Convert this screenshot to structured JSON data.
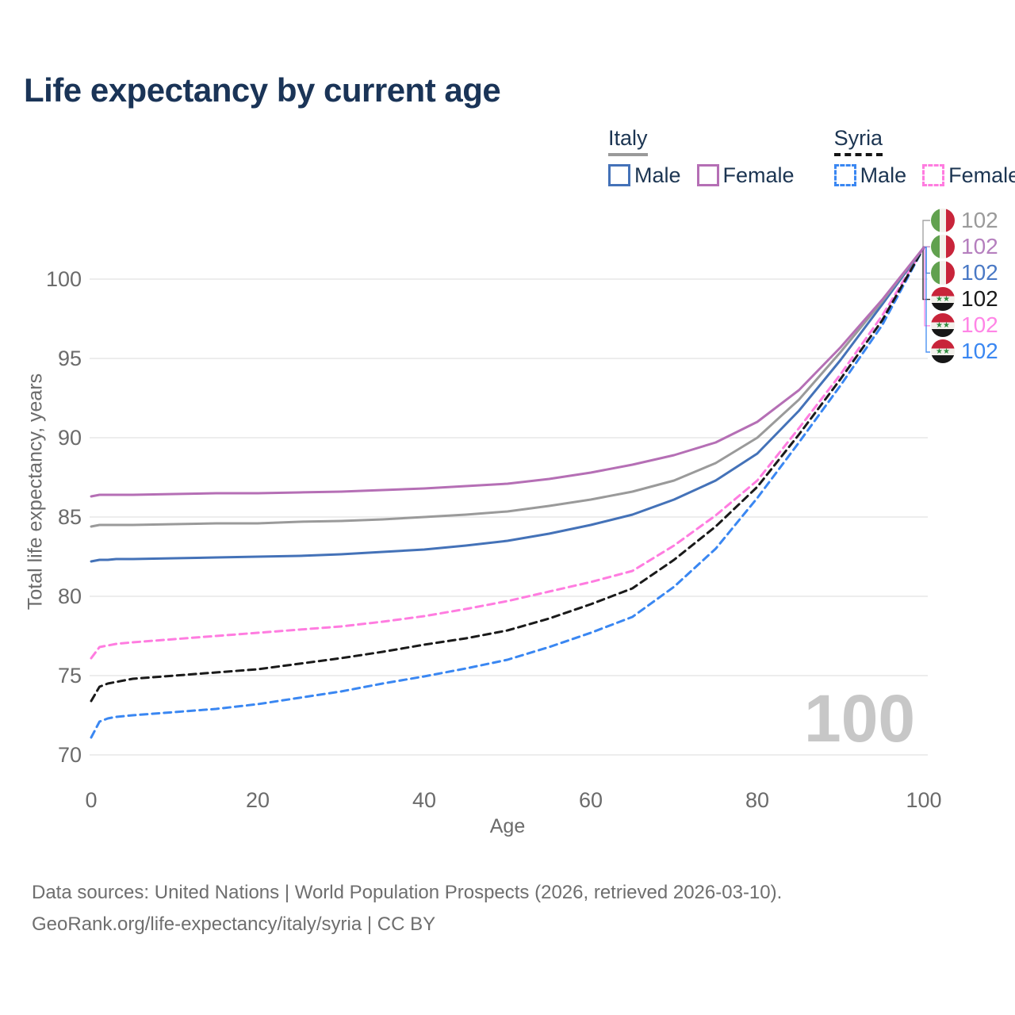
{
  "title": "Life expectancy by current age",
  "legend": {
    "groups": [
      {
        "country": "Italy",
        "underline_style": "solid",
        "underline_color": "#9a9a9a",
        "items": [
          {
            "label": "Male",
            "color": "#4472b8",
            "style": "solid"
          },
          {
            "label": "Female",
            "color": "#b56fb5",
            "style": "solid"
          }
        ]
      },
      {
        "country": "Syria",
        "underline_style": "dashed",
        "underline_color": "#141414",
        "items": [
          {
            "label": "Male",
            "color": "#3a87f2",
            "style": "dashed"
          },
          {
            "label": "Female",
            "color": "#ff7ce0",
            "style": "dashed"
          }
        ]
      }
    ]
  },
  "end_labels": [
    {
      "country": "Italy",
      "series": "Italy average",
      "value": "102",
      "color": "#9a9a9a"
    },
    {
      "country": "Italy",
      "series": "Italy female",
      "value": "102",
      "color": "#b57fbe"
    },
    {
      "country": "Italy",
      "series": "Italy male",
      "value": "102",
      "color": "#4a79c5"
    },
    {
      "country": "Syria",
      "series": "Syria average",
      "value": "102",
      "color": "#1a1a1a"
    },
    {
      "country": "Syria",
      "series": "Syria female",
      "value": "102",
      "color": "#ff85e6"
    },
    {
      "country": "Syria",
      "series": "Syria male",
      "value": "102",
      "color": "#3a87f2"
    }
  ],
  "hover_age_label": "100",
  "footer": {
    "line1": "Data sources: United Nations | World Population Prospects (2026, retrieved 2026-03-10).",
    "line2": "GeoRank.org/life-expectancy/italy/syria | CC BY"
  },
  "chart_data": {
    "type": "line",
    "title": "Life expectancy by current age",
    "xlabel": "Age",
    "ylabel": "Total life expectancy, years",
    "xlim": [
      0,
      100
    ],
    "ylim": [
      70,
      102
    ],
    "x_ticks": [
      0,
      20,
      40,
      60,
      80,
      100
    ],
    "y_ticks": [
      70,
      75,
      80,
      85,
      90,
      95,
      100
    ],
    "grid": "horizontal",
    "legend_position": "top-right",
    "x": [
      0,
      1,
      2,
      3,
      5,
      10,
      15,
      20,
      25,
      30,
      35,
      40,
      45,
      50,
      55,
      60,
      65,
      70,
      75,
      80,
      85,
      90,
      95,
      100
    ],
    "series": [
      {
        "name": "Italy average",
        "color": "#9a9a9a",
        "style": "solid",
        "values": [
          84.4,
          84.5,
          84.5,
          84.5,
          84.5,
          84.55,
          84.6,
          84.6,
          84.7,
          84.75,
          84.85,
          85.0,
          85.15,
          85.35,
          85.7,
          86.1,
          86.6,
          87.3,
          88.4,
          90.0,
          92.4,
          95.4,
          98.6,
          102
        ]
      },
      {
        "name": "Italy female",
        "color": "#b56fb5",
        "style": "solid",
        "values": [
          86.3,
          86.4,
          86.4,
          86.4,
          86.4,
          86.45,
          86.5,
          86.5,
          86.55,
          86.6,
          86.7,
          86.8,
          86.95,
          87.1,
          87.4,
          87.8,
          88.3,
          88.9,
          89.7,
          91.0,
          93.0,
          95.7,
          98.7,
          102
        ]
      },
      {
        "name": "Italy male",
        "color": "#4472b8",
        "style": "solid",
        "values": [
          82.2,
          82.3,
          82.3,
          82.35,
          82.35,
          82.4,
          82.45,
          82.5,
          82.55,
          82.65,
          82.8,
          82.95,
          83.2,
          83.5,
          83.95,
          84.5,
          85.15,
          86.1,
          87.3,
          89.0,
          91.7,
          94.9,
          98.4,
          102
        ]
      },
      {
        "name": "Syria average",
        "color": "#1a1a1a",
        "style": "dashed",
        "values": [
          73.4,
          74.3,
          74.5,
          74.6,
          74.8,
          75.0,
          75.2,
          75.4,
          75.75,
          76.1,
          76.5,
          76.95,
          77.35,
          77.85,
          78.6,
          79.5,
          80.5,
          82.3,
          84.4,
          86.9,
          90.2,
          93.7,
          97.4,
          102
        ]
      },
      {
        "name": "Syria female",
        "color": "#ff7ce0",
        "style": "dashed",
        "values": [
          76.1,
          76.8,
          76.9,
          77.0,
          77.1,
          77.3,
          77.5,
          77.7,
          77.9,
          78.1,
          78.4,
          78.75,
          79.2,
          79.7,
          80.3,
          80.9,
          81.6,
          83.2,
          85.1,
          87.3,
          90.6,
          94.0,
          97.7,
          102
        ]
      },
      {
        "name": "Syria male",
        "color": "#3a87f2",
        "style": "dashed",
        "values": [
          71.1,
          72.1,
          72.3,
          72.4,
          72.5,
          72.7,
          72.9,
          73.2,
          73.6,
          74.0,
          74.5,
          74.95,
          75.45,
          76.0,
          76.8,
          77.7,
          78.7,
          80.6,
          83.0,
          86.2,
          89.7,
          93.3,
          97.1,
          102
        ]
      }
    ],
    "end_annotation": {
      "age": 100,
      "value": 102
    }
  }
}
